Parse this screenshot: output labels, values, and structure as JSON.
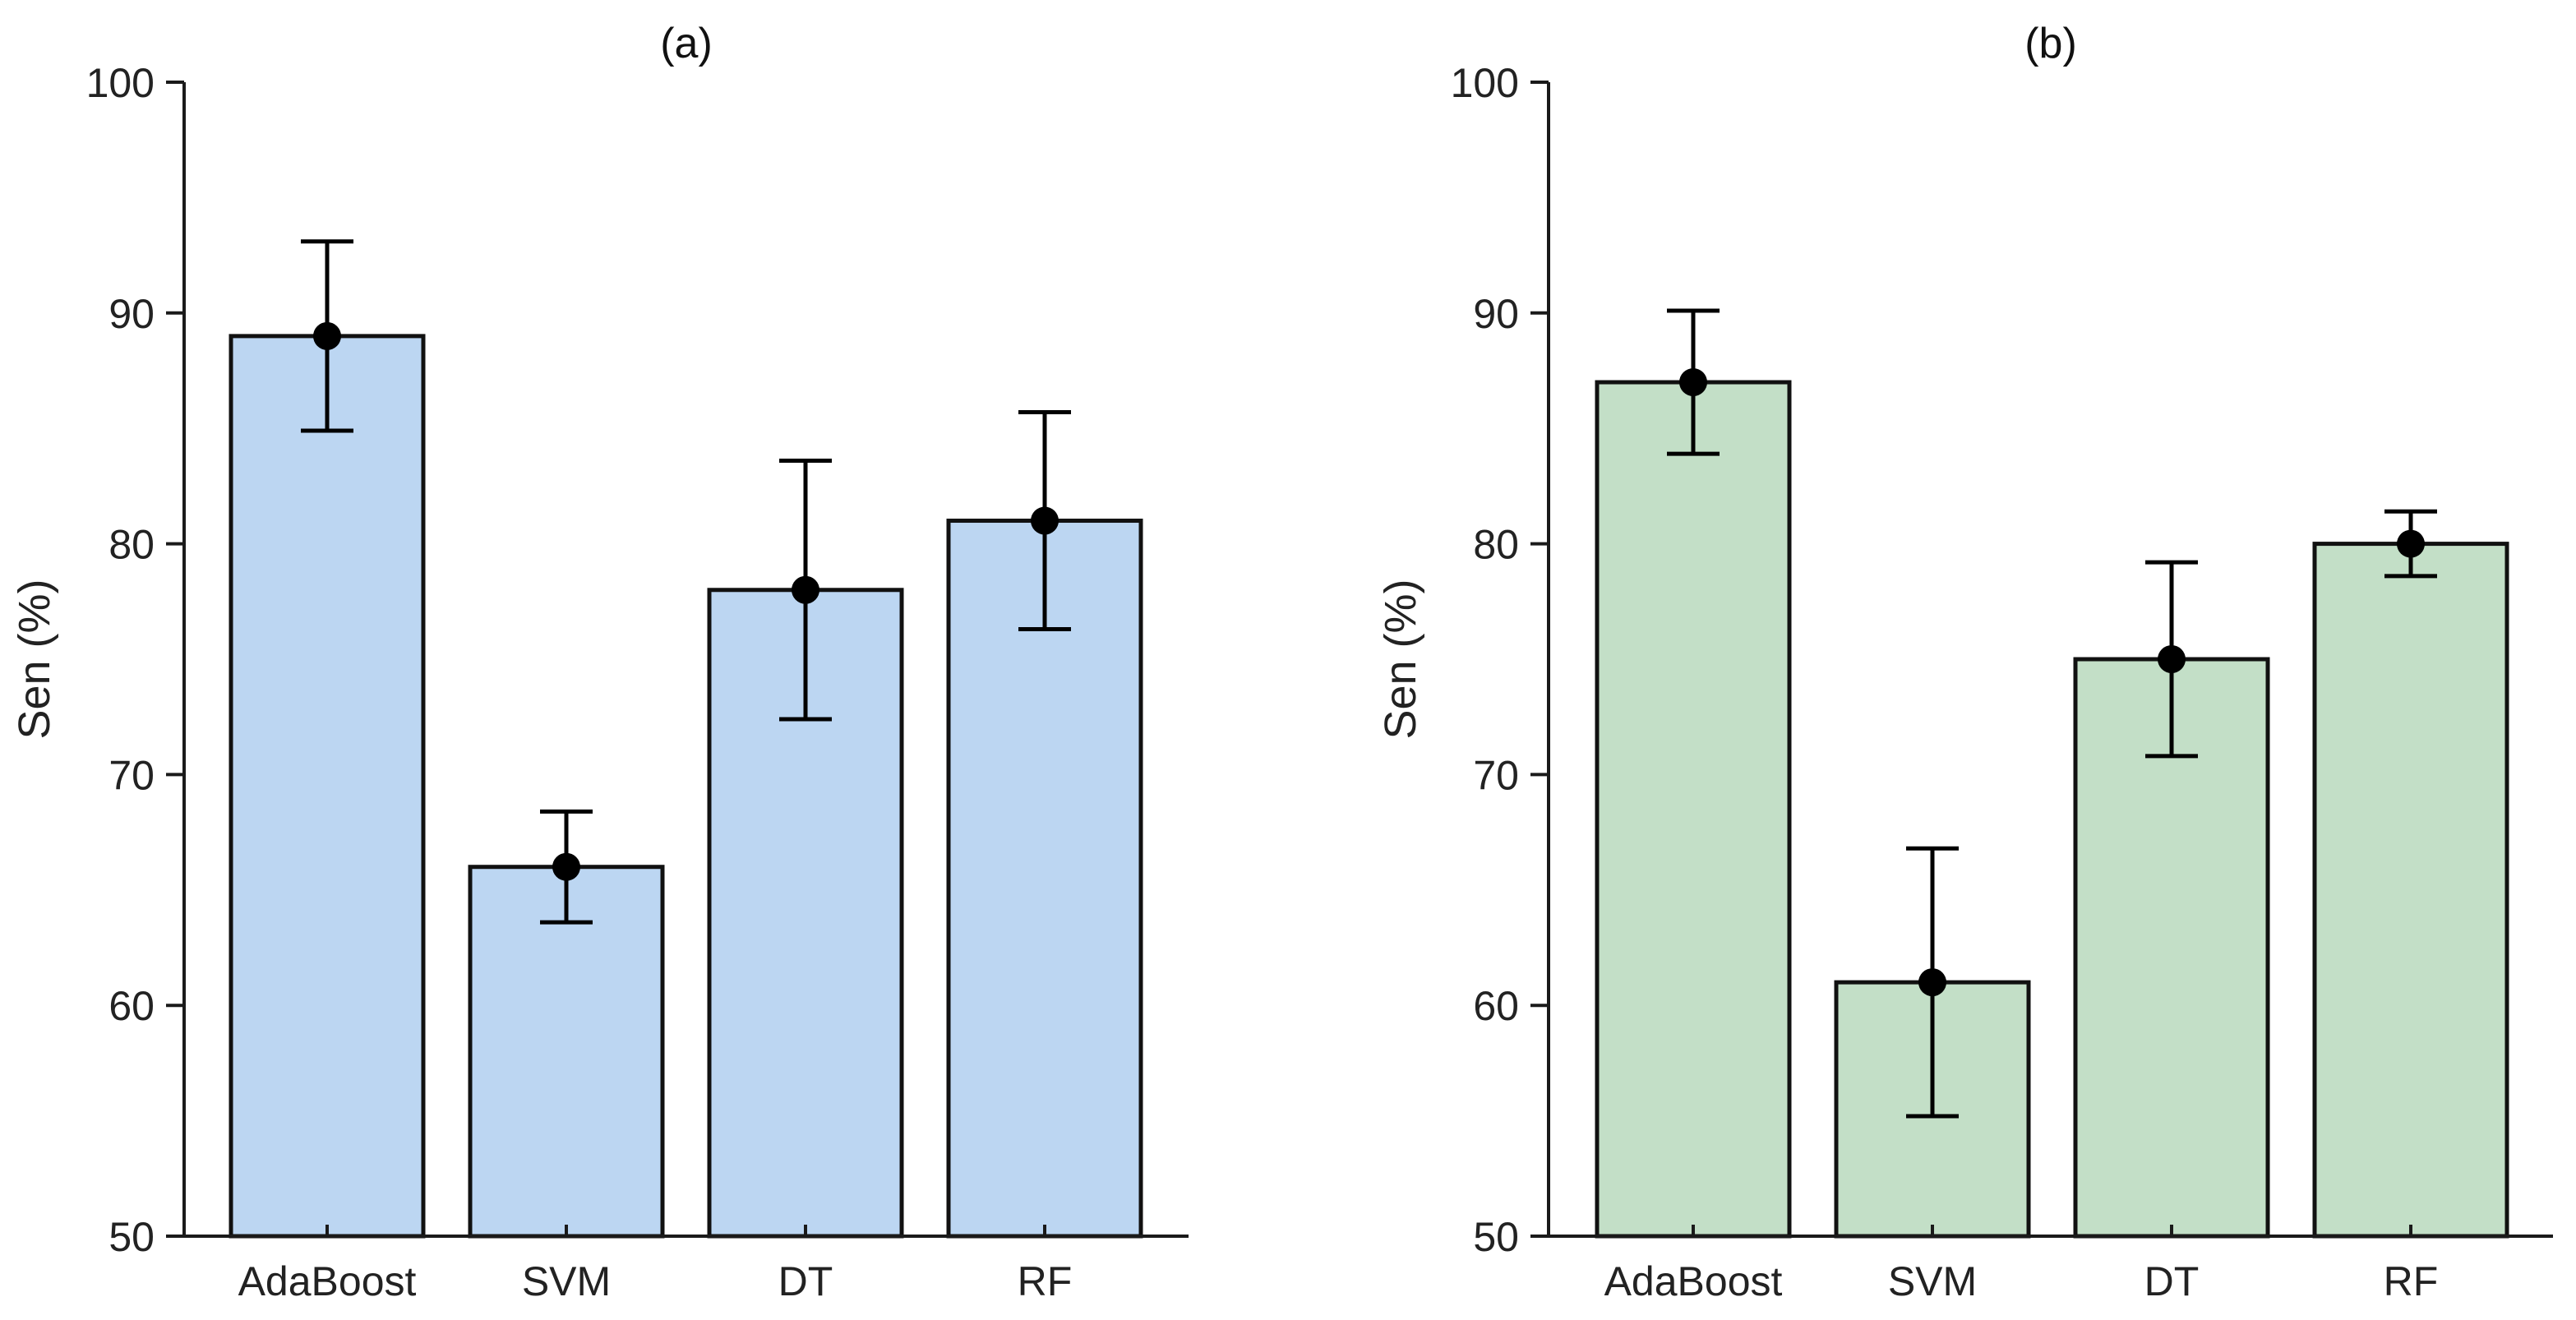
{
  "chart_data": [
    {
      "type": "bar",
      "title": "(a)",
      "ylabel": "Sen (%)",
      "xlabel": "",
      "categories": [
        "AdaBoost",
        "SVM",
        "DT",
        "RF"
      ],
      "values": [
        89,
        66,
        78,
        81
      ],
      "error_upper": [
        93.1,
        68.4,
        83.6,
        85.7
      ],
      "error_lower": [
        84.9,
        63.6,
        72.4,
        76.3
      ],
      "ylim": [
        50,
        100
      ],
      "yticks": [
        50,
        60,
        70,
        80,
        90,
        100
      ],
      "color": "#bcd6f2"
    },
    {
      "type": "bar",
      "title": "(b)",
      "ylabel": "Sen (%)",
      "xlabel": "",
      "categories": [
        "AdaBoost",
        "SVM",
        "DT",
        "RF"
      ],
      "values": [
        87,
        61,
        75,
        80
      ],
      "error_upper": [
        90.1,
        66.8,
        79.2,
        81.4
      ],
      "error_lower": [
        83.9,
        55.2,
        70.8,
        78.6
      ],
      "ylim": [
        50,
        100
      ],
      "yticks": [
        50,
        60,
        70,
        80,
        90,
        100
      ],
      "color": "#c3dfc7"
    }
  ]
}
